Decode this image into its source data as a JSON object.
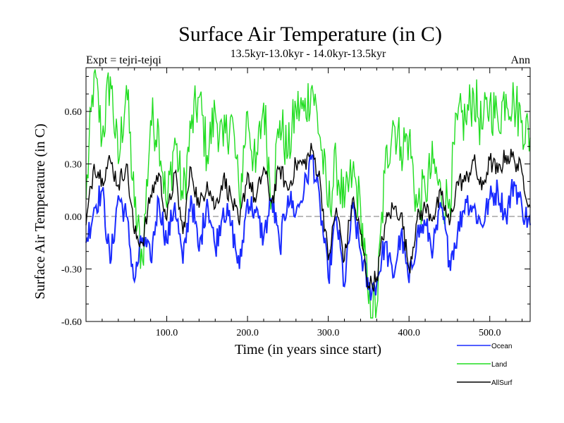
{
  "chart_data": {
    "type": "line",
    "title": "Surface Air Temperature (in C)",
    "subtitle": "13.5kyr-13.0kyr - 14.0kyr-13.5kyr",
    "left_label": "Expt = tejri-tejqi",
    "right_label": "Ann",
    "xlabel": "Time (in years since start)",
    "ylabel": "Surface Air Temperature (in C)",
    "xlim": [
      0,
      550
    ],
    "ylim": [
      -0.6,
      0.85
    ],
    "xticks": [
      100,
      200,
      300,
      400,
      500
    ],
    "xtick_labels": [
      "100.0",
      "200.0",
      "300.0",
      "400.0",
      "500.0"
    ],
    "yticks": [
      -0.6,
      -0.3,
      0.0,
      0.3,
      0.6
    ],
    "ytick_labels": [
      "-0.60",
      "-0.30",
      "0.00",
      "0.30",
      "0.60"
    ],
    "zero_line": true,
    "legend": [
      "Ocean",
      "Land",
      "AllSurf"
    ],
    "series": [
      {
        "name": "Ocean",
        "color": "#1a2bff",
        "x": [
          0,
          10,
          20,
          30,
          40,
          50,
          60,
          70,
          80,
          90,
          100,
          110,
          120,
          130,
          140,
          150,
          160,
          170,
          180,
          190,
          200,
          210,
          220,
          230,
          240,
          250,
          260,
          270,
          280,
          290,
          300,
          310,
          320,
          330,
          340,
          350,
          360,
          370,
          380,
          390,
          400,
          410,
          420,
          430,
          440,
          450,
          460,
          470,
          480,
          490,
          500,
          510,
          520,
          530,
          540,
          550
        ],
        "values": [
          -0.15,
          0.05,
          0.15,
          -0.27,
          0.12,
          0.0,
          -0.37,
          -0.12,
          -0.25,
          0.1,
          -0.15,
          0.08,
          -0.27,
          0.12,
          -0.2,
          0.1,
          -0.18,
          0.05,
          -0.05,
          -0.3,
          0.1,
          0.02,
          -0.12,
          0.1,
          -0.18,
          0.12,
          0.02,
          0.15,
          0.35,
          0.05,
          -0.35,
          0.0,
          -0.4,
          0.05,
          -0.2,
          -0.42,
          -0.38,
          -0.15,
          -0.35,
          -0.1,
          -0.38,
          -0.1,
          -0.05,
          -0.18,
          0.05,
          -0.25,
          -0.1,
          0.1,
          0.05,
          -0.05,
          0.1,
          0.15,
          0.0,
          0.2,
          0.05,
          -0.05
        ]
      },
      {
        "name": "Land",
        "color": "#22dd22",
        "x": [
          0,
          10,
          20,
          30,
          40,
          50,
          60,
          70,
          80,
          90,
          100,
          110,
          120,
          130,
          140,
          150,
          160,
          170,
          180,
          190,
          200,
          210,
          220,
          230,
          240,
          250,
          260,
          270,
          280,
          290,
          300,
          310,
          320,
          330,
          340,
          350,
          360,
          370,
          380,
          390,
          400,
          410,
          420,
          430,
          440,
          450,
          460,
          470,
          480,
          490,
          500,
          510,
          520,
          530,
          540,
          550
        ],
        "values": [
          0.1,
          0.82,
          0.45,
          0.8,
          0.3,
          0.75,
          0.05,
          -0.25,
          0.55,
          0.5,
          0.05,
          0.45,
          0.1,
          0.5,
          0.68,
          0.35,
          0.6,
          0.4,
          0.58,
          0.1,
          0.6,
          0.25,
          0.65,
          0.1,
          0.55,
          0.35,
          0.62,
          0.6,
          0.75,
          0.45,
          0.05,
          0.3,
          0.05,
          0.25,
          0.05,
          -0.5,
          -0.52,
          0.25,
          0.55,
          0.4,
          0.45,
          0.05,
          0.15,
          0.3,
          0.1,
          0.1,
          0.55,
          0.55,
          0.7,
          0.5,
          0.65,
          0.55,
          0.7,
          0.65,
          0.55,
          0.45
        ]
      },
      {
        "name": "AllSurf",
        "color": "#000000",
        "x": [
          0,
          10,
          20,
          30,
          40,
          50,
          60,
          70,
          80,
          90,
          100,
          110,
          120,
          130,
          140,
          150,
          160,
          170,
          180,
          190,
          200,
          210,
          220,
          230,
          240,
          250,
          260,
          270,
          280,
          290,
          300,
          310,
          320,
          330,
          340,
          350,
          360,
          370,
          380,
          390,
          400,
          410,
          420,
          430,
          440,
          450,
          460,
          470,
          480,
          490,
          500,
          510,
          520,
          530,
          540,
          550
        ],
        "values": [
          -0.05,
          0.3,
          0.22,
          0.32,
          0.18,
          0.3,
          -0.1,
          -0.15,
          0.12,
          0.25,
          -0.02,
          0.25,
          -0.1,
          0.28,
          0.05,
          0.2,
          0.05,
          0.22,
          0.1,
          -0.05,
          0.25,
          0.08,
          0.28,
          0.08,
          0.28,
          0.15,
          0.3,
          0.3,
          0.38,
          0.2,
          -0.25,
          0.05,
          -0.25,
          0.1,
          -0.1,
          -0.4,
          -0.35,
          -0.05,
          0.05,
          0.02,
          -0.3,
          -0.02,
          0.05,
          0.0,
          0.12,
          -0.05,
          0.2,
          0.2,
          0.32,
          0.15,
          0.32,
          0.25,
          0.35,
          0.33,
          0.25,
          0.05
        ]
      }
    ]
  }
}
